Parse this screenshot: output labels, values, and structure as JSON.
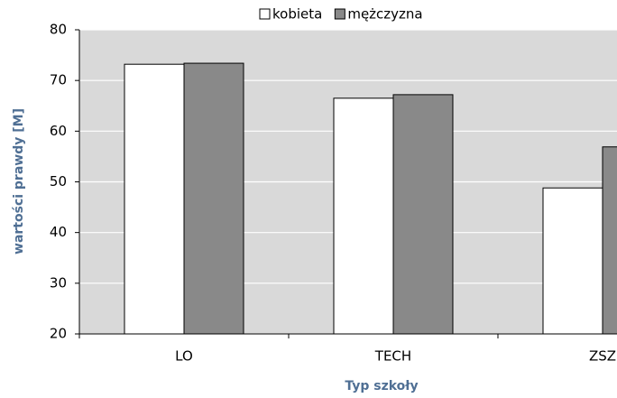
{
  "chart_data": {
    "type": "bar",
    "categories": [
      "LO",
      "TECH",
      "ZSZ"
    ],
    "series": [
      {
        "name": "kobieta",
        "color": "#ffffff",
        "values": [
          73.2,
          66.5,
          48.8
        ]
      },
      {
        "name": "mężczyzna",
        "color": "#898989",
        "values": [
          73.4,
          67.2,
          56.9
        ]
      }
    ],
    "y_label": "wartości prawdy [M]",
    "x_label": "Typ szkoły",
    "ylim": [
      20,
      80
    ],
    "yticks": [
      20,
      30,
      40,
      50,
      60,
      70,
      80
    ],
    "grid": true,
    "legend": "top"
  }
}
